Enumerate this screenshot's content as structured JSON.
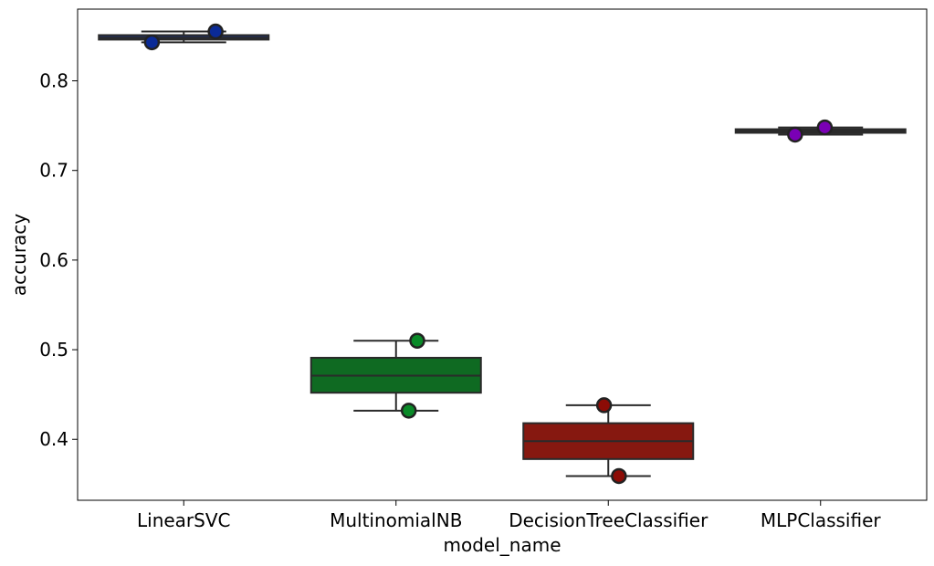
{
  "chart_data": {
    "type": "box",
    "xlabel": "model_name",
    "ylabel": "accuracy",
    "ylim": [
      0.332,
      0.88
    ],
    "yticks": [
      0.4,
      0.5,
      0.6,
      0.7,
      0.8
    ],
    "ytick_labels": [
      "0.4",
      "0.5",
      "0.6",
      "0.7",
      "0.8"
    ],
    "grid": false,
    "categories": [
      "LinearSVC",
      "MultinomialNB",
      "DecisionTreeClassifier",
      "MLPClassifier"
    ],
    "boxes": [
      {
        "name": "LinearSVC",
        "color": "#1e2f6b",
        "min": 0.843,
        "q1": 0.846,
        "median": 0.848,
        "q3": 0.851,
        "max": 0.855
      },
      {
        "name": "MultinomialNB",
        "color": "#0f6a22",
        "min": 0.432,
        "q1": 0.452,
        "median": 0.471,
        "q3": 0.491,
        "max": 0.51
      },
      {
        "name": "DecisionTreeClassifier",
        "color": "#861810",
        "min": 0.359,
        "q1": 0.378,
        "median": 0.398,
        "q3": 0.418,
        "max": 0.438
      },
      {
        "name": "MLPClassifier",
        "color": "#2b2b2b",
        "min": 0.74,
        "q1": 0.742,
        "median": 0.744,
        "q3": 0.746,
        "max": 0.748
      }
    ],
    "points": [
      {
        "category": "LinearSVC",
        "offset": 0.15,
        "y": 0.855,
        "color": "#0a2a96"
      },
      {
        "category": "LinearSVC",
        "offset": -0.15,
        "y": 0.843,
        "color": "#0a2a96"
      },
      {
        "category": "MultinomialNB",
        "offset": 0.1,
        "y": 0.51,
        "color": "#0a8a28"
      },
      {
        "category": "MultinomialNB",
        "offset": 0.06,
        "y": 0.432,
        "color": "#0a8a28"
      },
      {
        "category": "DecisionTreeClassifier",
        "offset": -0.02,
        "y": 0.438,
        "color": "#8c0c06"
      },
      {
        "category": "DecisionTreeClassifier",
        "offset": 0.05,
        "y": 0.359,
        "color": "#8c0c06"
      },
      {
        "category": "MLPClassifier",
        "offset": 0.02,
        "y": 0.748,
        "color": "#7a00b5"
      },
      {
        "category": "MLPClassifier",
        "offset": -0.12,
        "y": 0.74,
        "color": "#7a00b5"
      }
    ]
  }
}
